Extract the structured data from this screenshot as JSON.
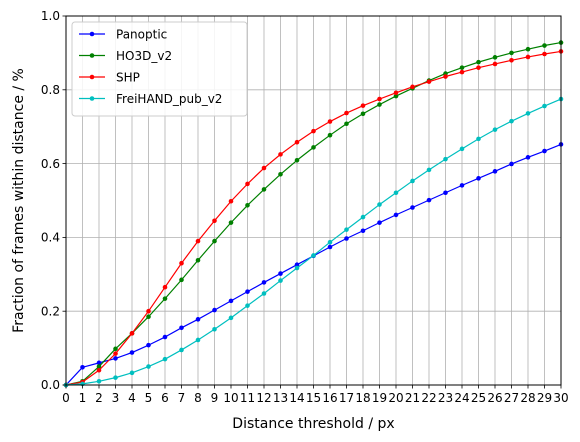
{
  "chart_data": {
    "type": "line",
    "xlabel": "Distance threshold / px",
    "ylabel": "Fraction of frames within distance / %",
    "xlim": [
      0,
      30
    ],
    "ylim": [
      0,
      1.0
    ],
    "grid": true,
    "legend_position": "top-left",
    "x": [
      0,
      1,
      2,
      3,
      4,
      5,
      6,
      7,
      8,
      9,
      10,
      11,
      12,
      13,
      14,
      15,
      16,
      17,
      18,
      19,
      20,
      21,
      22,
      23,
      24,
      25,
      26,
      27,
      28,
      29,
      30
    ],
    "x_ticks": [
      "0",
      "1",
      "2",
      "3",
      "4",
      "5",
      "6",
      "7",
      "8",
      "9",
      "10",
      "11",
      "12",
      "13",
      "14",
      "15",
      "16",
      "17",
      "18",
      "19",
      "20",
      "21",
      "22",
      "23",
      "24",
      "25",
      "26",
      "27",
      "28",
      "29",
      "30"
    ],
    "y_ticks": [
      {
        "value": 0.0,
        "label": "0.0"
      },
      {
        "value": 0.2,
        "label": "0.2"
      },
      {
        "value": 0.4,
        "label": "0.4"
      },
      {
        "value": 0.6,
        "label": "0.6"
      },
      {
        "value": 0.8,
        "label": "0.8"
      },
      {
        "value": 1.0,
        "label": "1.0"
      }
    ],
    "series": [
      {
        "name": "Panoptic",
        "color": "#0000ff",
        "values": [
          0.0,
          0.048,
          0.06,
          0.072,
          0.088,
          0.108,
          0.13,
          0.155,
          0.178,
          0.203,
          0.228,
          0.253,
          0.278,
          0.302,
          0.326,
          0.35,
          0.374,
          0.397,
          0.418,
          0.44,
          0.461,
          0.481,
          0.501,
          0.521,
          0.541,
          0.56,
          0.579,
          0.599,
          0.617,
          0.634,
          0.652
        ]
      },
      {
        "name": "HO3D_v2",
        "color": "#008000",
        "values": [
          0.0,
          0.01,
          0.05,
          0.098,
          0.14,
          0.185,
          0.234,
          0.285,
          0.338,
          0.39,
          0.44,
          0.487,
          0.53,
          0.571,
          0.609,
          0.644,
          0.677,
          0.708,
          0.735,
          0.76,
          0.783,
          0.804,
          0.825,
          0.844,
          0.86,
          0.875,
          0.888,
          0.9,
          0.91,
          0.92,
          0.928
        ]
      },
      {
        "name": "SHP",
        "color": "#ff0000",
        "values": [
          0.0,
          0.008,
          0.04,
          0.085,
          0.14,
          0.2,
          0.265,
          0.33,
          0.39,
          0.445,
          0.498,
          0.545,
          0.588,
          0.625,
          0.658,
          0.688,
          0.714,
          0.737,
          0.757,
          0.775,
          0.792,
          0.808,
          0.822,
          0.836,
          0.848,
          0.86,
          0.87,
          0.88,
          0.889,
          0.897,
          0.904
        ]
      },
      {
        "name": "FreiHAND_pub_v2",
        "color": "#00bfbf",
        "values": [
          0.0,
          0.003,
          0.01,
          0.02,
          0.033,
          0.05,
          0.07,
          0.095,
          0.122,
          0.151,
          0.182,
          0.215,
          0.248,
          0.283,
          0.317,
          0.351,
          0.387,
          0.421,
          0.455,
          0.489,
          0.521,
          0.553,
          0.583,
          0.612,
          0.64,
          0.667,
          0.692,
          0.715,
          0.736,
          0.756,
          0.775
        ]
      }
    ]
  }
}
